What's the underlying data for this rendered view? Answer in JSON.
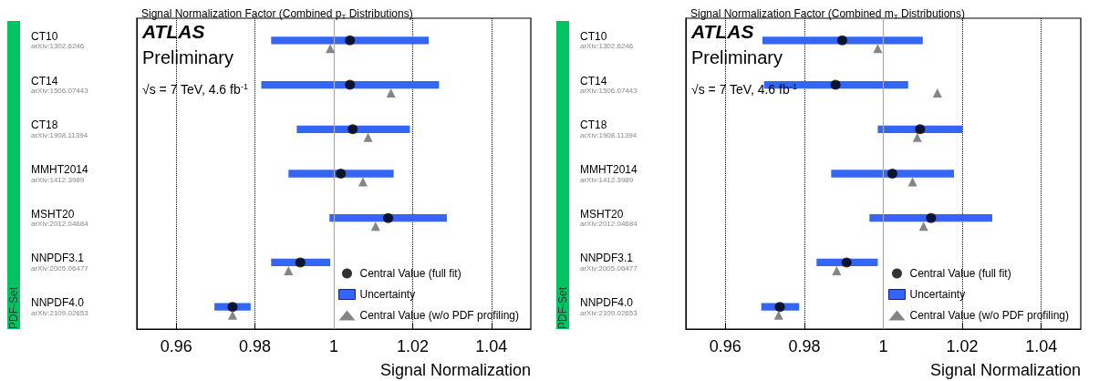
{
  "chart_data": [
    {
      "type": "bar",
      "orientation": "horizontal",
      "title": "Signal Normalization Factor (Combined p$_{T}$ Distributions)",
      "xlabel": "Signal Normalization",
      "ylabel": "PDF-Set",
      "annotations": [
        "ATLAS",
        "Preliminary",
        "√s = 7 TeV, 4.6 fb$^{-1}$"
      ],
      "categories": [
        "CT10\narXiv:1302.6246",
        "CT14\narXiv:1506.07443",
        "CT18\narXiv:1908.11394",
        "MMHT2014\narXiv:1412.3989",
        "MSHT20\narXiv:2012.04684",
        "NNPDF3.1\narXiv:2005.06477",
        "NNPDF4.0\narXiv:2109.02653"
      ],
      "series": [
        {
          "name": "Central Value (full fit)",
          "type": "scatter",
          "marker": "circle",
          "color": "#000000",
          "values": [
            1.0041,
            1.0041,
            1.0048,
            1.0018,
            1.0138,
            0.9915,
            0.9743
          ]
        },
        {
          "name": "Uncertainty",
          "type": "bar",
          "color": "#3366f5",
          "base": [
            0.9841,
            0.9816,
            0.9906,
            0.9885,
            0.9989,
            0.9841,
            0.9697
          ],
          "values": [
            0.04,
            0.0451,
            0.0287,
            0.0267,
            0.0298,
            0.015,
            0.0092
          ]
        },
        {
          "name": "Central Value (w/o PDF profiling)",
          "type": "scatter",
          "marker": "triangle",
          "color": "#666666",
          "values": [
            0.9991,
            1.0145,
            1.0087,
            1.0074,
            1.0106,
            0.9885,
            0.9743
          ]
        }
      ],
      "xlim": [
        0.95,
        1.05
      ],
      "xticks": [
        0.96,
        0.98,
        1,
        1.02,
        1.04
      ],
      "grid": "x",
      "legend": "bottom right",
      "ref_lines": [
        {
          "axis": "x",
          "value": 1,
          "color": "#aaaaaa"
        }
      ]
    },
    {
      "type": "bar",
      "orientation": "horizontal",
      "title": "Signal Normalization Factor (Combined m$_{T}$ Distributions)",
      "xlabel": "Signal Normalization",
      "ylabel": "PDF-Set",
      "annotations": [
        "ATLAS",
        "Preliminary",
        "√s = 7 TeV, 4.6 fb$^{-1}$"
      ],
      "categories": [
        "CT10\narXiv:1302.6246",
        "CT14\narXiv:1506.07443",
        "CT18\narXiv:1908.11394",
        "MMHT2014\narXiv:1412.3989",
        "MSHT20\narXiv:2012.04684",
        "NNPDF3.1\narXiv:2005.06477",
        "NNPDF4.0\narXiv:2109.02653"
      ],
      "series": [
        {
          "name": "Central Value (full fit)",
          "type": "scatter",
          "marker": "circle",
          "color": "#000000",
          "values": [
            0.9896,
            0.9879,
            1.0093,
            1.0023,
            1.0121,
            0.9907,
            0.9738
          ]
        },
        {
          "name": "Uncertainty",
          "type": "bar",
          "color": "#3366f5",
          "base": [
            0.9694,
            0.9698,
            0.9986,
            0.9868,
            0.9965,
            0.9831,
            0.9691
          ],
          "values": [
            0.0406,
            0.0365,
            0.0214,
            0.0311,
            0.0311,
            0.0155,
            0.0096
          ]
        },
        {
          "name": "Central Value (w/o PDF profiling)",
          "type": "scatter",
          "marker": "triangle",
          "color": "#666666",
          "values": [
            0.9986,
            1.0137,
            1.0086,
            1.0074,
            1.0102,
            0.9882,
            0.9735
          ]
        }
      ],
      "xlim": [
        0.95,
        1.05
      ],
      "xticks": [
        0.96,
        0.98,
        1,
        1.02,
        1.04
      ],
      "grid": "x",
      "legend": "bottom right",
      "ref_lines": [
        {
          "axis": "x",
          "value": 1,
          "color": "#aaaaaa"
        }
      ]
    }
  ]
}
